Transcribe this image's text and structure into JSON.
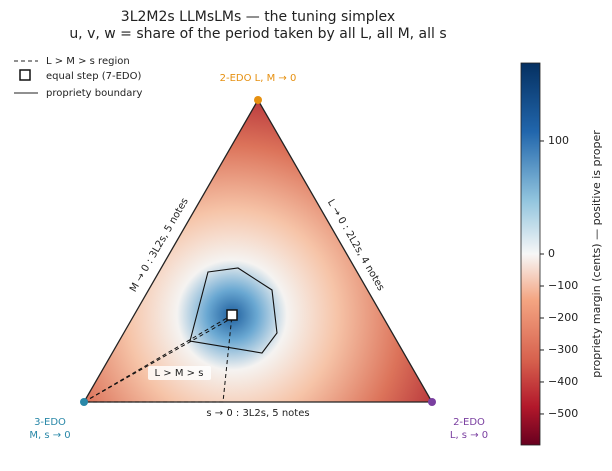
{
  "chart_data": {
    "type": "ternary-heatmap",
    "title": "3L2M2s   LLMsLMs   —   the tuning simplex",
    "subtitle": "u, v, w = share of the period taken by all L, all M, all s",
    "legend": [
      "L > M > s region",
      "equal step (7-EDO)",
      "propriety boundary"
    ],
    "vertices": [
      {
        "lines": [
          "2-EDO   L, M → 0"
        ],
        "color": "#e69010"
      },
      {
        "lines": [
          "3-EDO",
          "M, s → 0"
        ],
        "color": "#2a88a8"
      },
      {
        "lines": [
          "2-EDO",
          "L, s → 0"
        ],
        "color": "#7a3fa0"
      }
    ],
    "edges": [
      "M → 0 :  3L2s,  5 notes",
      "L → 0 :  2L2s,  4 notes",
      "s → 0 :  3L2s,  5 notes"
    ],
    "region_label": "L > M > s",
    "colorbar": {
      "label": "propriety margin (cents) — positive is proper",
      "norm": "two-slope",
      "vcenter": 0,
      "lim": [
        -597,
        169
      ],
      "ticks": [
        100,
        0,
        {
          "value": -100,
          "label": "−100"
        },
        {
          "value": -200,
          "label": "−200"
        },
        {
          "value": -300,
          "label": "−300"
        },
        {
          "value": -400,
          "label": "−400"
        },
        {
          "value": -500,
          "label": "−500"
        }
      ]
    }
  }
}
